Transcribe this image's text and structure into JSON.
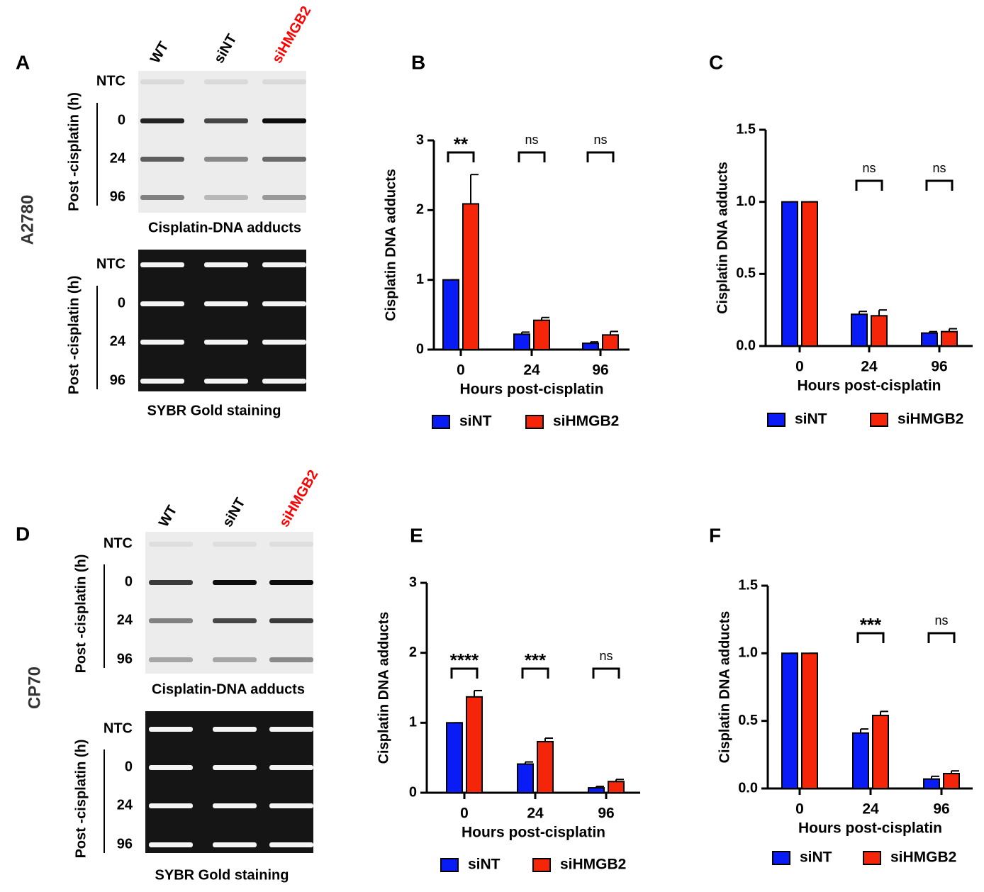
{
  "blots": [
    {
      "panel": "A",
      "cell_line": "A2780",
      "lanes": [
        "WT",
        "siNT",
        "siHMGB2"
      ],
      "lane_colors": [
        "#000000",
        "#000000",
        "#ff0000"
      ],
      "rows": [
        "NTC",
        "0",
        "24",
        "96"
      ],
      "rows_label": "Post -cisplatin (h)",
      "captions": [
        "Cisplatin-DNA adducts",
        "SYBR Gold staining"
      ]
    },
    {
      "panel": "D",
      "cell_line": "CP70",
      "lanes": [
        "WT",
        "siNT",
        "siHMGB2"
      ],
      "lane_colors": [
        "#000000",
        "#000000",
        "#ff0000"
      ],
      "rows": [
        "NTC",
        "0",
        "24",
        "96"
      ],
      "rows_label": "Post -cisplatin (h)",
      "captions": [
        "Cisplatin-DNA adducts",
        "SYBR Gold staining"
      ]
    }
  ],
  "chart_data": [
    {
      "type": "bar",
      "panel": "B",
      "x_label": "Hours post-cisplatin",
      "y_label": "Cisplatin DNA adducts",
      "categories": [
        "0",
        "24",
        "96"
      ],
      "ylim": [
        0,
        3
      ],
      "yticks": [
        0,
        1,
        2,
        3
      ],
      "series": [
        {
          "name": "siNT",
          "color": "#0a1cf5",
          "values": [
            1,
            0.22,
            0.09
          ],
          "errors": [
            0,
            0.03,
            0.02
          ]
        },
        {
          "name": "siHMGB2",
          "color": "#f5250a",
          "values": [
            2.09,
            0.42,
            0.21
          ],
          "errors": [
            0.42,
            0.04,
            0.05
          ]
        }
      ],
      "significance": [
        "**",
        "ns",
        "ns"
      ]
    },
    {
      "type": "bar",
      "panel": "C",
      "x_label": "Hours post-cisplatin",
      "y_label": "Cisplatin DNA adducts",
      "categories": [
        "0",
        "24",
        "96"
      ],
      "ylim": [
        0,
        1.5
      ],
      "yticks": [
        {
          "value": 0,
          "label": "0.0"
        },
        {
          "value": 0.5,
          "label": "0.5"
        },
        {
          "value": 1,
          "label": "1.0"
        },
        {
          "value": 1.5,
          "label": "1.5"
        }
      ],
      "series": [
        {
          "name": "siNT",
          "color": "#0a1cf5",
          "values": [
            1,
            0.22,
            0.09
          ],
          "errors": [
            0,
            0.02,
            0.01
          ]
        },
        {
          "name": "siHMGB2",
          "color": "#f5250a",
          "values": [
            1,
            0.21,
            0.1
          ],
          "errors": [
            0,
            0.04,
            0.02
          ]
        }
      ],
      "significance": [
        null,
        "ns",
        "ns"
      ]
    },
    {
      "type": "bar",
      "panel": "E",
      "x_label": "Hours post-cisplatin",
      "y_label": "Cisplatin DNA adducts",
      "categories": [
        "0",
        "24",
        "96"
      ],
      "ylim": [
        0,
        3
      ],
      "yticks": [
        0,
        1,
        2,
        3
      ],
      "series": [
        {
          "name": "siNT",
          "color": "#0a1cf5",
          "values": [
            1,
            0.41,
            0.07
          ],
          "errors": [
            0,
            0.03,
            0.02
          ]
        },
        {
          "name": "siHMGB2",
          "color": "#f5250a",
          "values": [
            1.37,
            0.73,
            0.16
          ],
          "errors": [
            0.09,
            0.05,
            0.03
          ]
        }
      ],
      "significance": [
        "****",
        "***",
        "ns"
      ]
    },
    {
      "type": "bar",
      "panel": "F",
      "x_label": "Hours post-cisplatin",
      "y_label": "Cisplatin DNA adducts",
      "categories": [
        "0",
        "24",
        "96"
      ],
      "ylim": [
        0,
        1.5
      ],
      "yticks": [
        {
          "value": 0,
          "label": "0.0"
        },
        {
          "value": 0.5,
          "label": "0.5"
        },
        {
          "value": 1,
          "label": "1.0"
        },
        {
          "value": 1.5,
          "label": "1.5"
        }
      ],
      "series": [
        {
          "name": "siNT",
          "color": "#0a1cf5",
          "values": [
            1,
            0.41,
            0.07
          ],
          "errors": [
            0,
            0.03,
            0.02
          ]
        },
        {
          "name": "siHMGB2",
          "color": "#f5250a",
          "values": [
            1,
            0.54,
            0.11
          ],
          "errors": [
            0,
            0.03,
            0.02
          ]
        }
      ],
      "significance": [
        null,
        "***",
        "ns"
      ]
    }
  ]
}
